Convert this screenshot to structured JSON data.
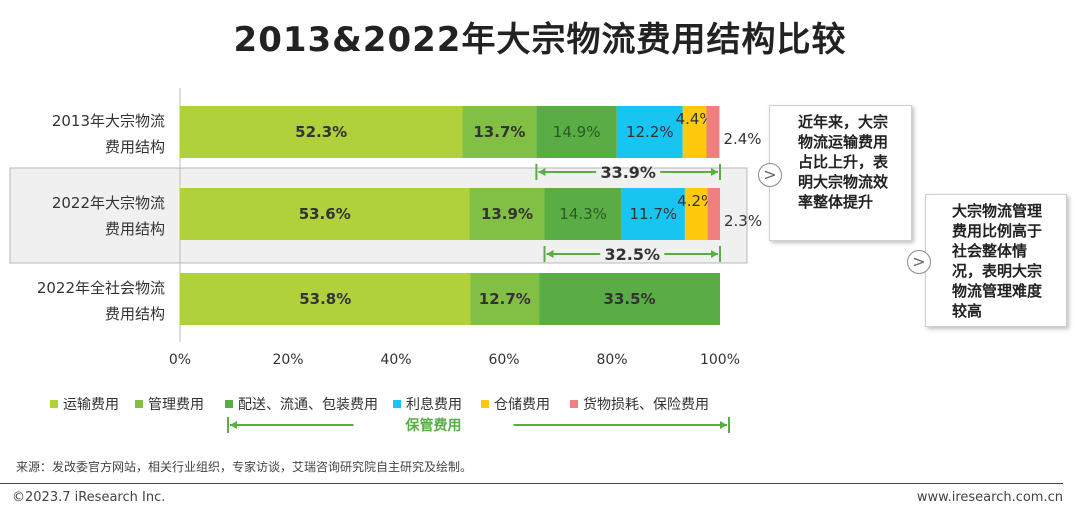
{
  "title": "2013&2022年大宗物流费用结构比较",
  "chart_data": {
    "type": "bar",
    "orientation": "horizontal",
    "stacked": true,
    "categories": [
      [
        "2013年大宗物流",
        "费用结构"
      ],
      [
        "2022年大宗物流",
        "费用结构"
      ],
      [
        "2022年全社会物流",
        "费用结构"
      ]
    ],
    "series": [
      {
        "name": "运输费用",
        "color": "#b1d13c",
        "values": [
          52.3,
          53.6,
          53.8
        ],
        "labels": [
          "52.3%",
          "53.6%",
          "53.8%"
        ]
      },
      {
        "name": "管理费用",
        "color": "#82bf45",
        "values": [
          13.7,
          13.9,
          12.7
        ],
        "labels": [
          "13.7%",
          "13.9%",
          "12.7%"
        ]
      },
      {
        "name": "配送、流通、包装费用",
        "color": "#5aad45",
        "values": [
          14.9,
          14.3,
          33.5
        ],
        "labels": [
          "14.9%",
          "14.3%",
          "33.5%"
        ]
      },
      {
        "name": "利息费用",
        "color": "#18c5f0",
        "values": [
          12.2,
          11.7,
          0
        ],
        "labels": [
          "12.2%",
          "11.7%",
          ""
        ]
      },
      {
        "name": "仓储费用",
        "color": "#ffc90e",
        "values": [
          4.4,
          4.2,
          0
        ],
        "labels": [
          "4.4%",
          "4.2%",
          ""
        ]
      },
      {
        "name": "货物损耗、保险费用",
        "color": "#f08080",
        "values": [
          2.4,
          2.3,
          0
        ],
        "labels": [
          "2.4%",
          "2.3%",
          ""
        ]
      }
    ],
    "xticks": [
      "0%",
      "20%",
      "40%",
      "60%",
      "80%",
      "100%"
    ],
    "xlim": [
      0,
      100
    ],
    "brackets": [
      {
        "row": 0,
        "from": 66.0,
        "to": 100,
        "label": "33.9%"
      },
      {
        "row": 1,
        "from": 67.5,
        "to": 100,
        "label": "32.5%"
      }
    ],
    "legend_bracket_label": "保管费用",
    "highlighted_row": 1
  },
  "notes": {
    "note1": "近年来，大宗物流运输费用占比上升，表明大宗物流效率整体提升",
    "note2": "大宗物流管理费用比例高于社会整体情况，表明大宗物流管理难度较高",
    "arrow": ">"
  },
  "legend": [
    {
      "label": "运输费用",
      "color": "#b1d13c"
    },
    {
      "label": "管理费用",
      "color": "#82bf45"
    },
    {
      "label": "配送、流通、包装费用",
      "color": "#5aad45"
    },
    {
      "label": "利息费用",
      "color": "#18c5f0"
    },
    {
      "label": "仓储费用",
      "color": "#ffc90e"
    },
    {
      "label": "货物损耗、保险费用",
      "color": "#f08080"
    }
  ],
  "source": "来源：发改委官方网站，相关行业组织，专家访谈，艾瑞咨询研究院自主研究及绘制。",
  "footer": {
    "left": "©2023.7 iResearch Inc.",
    "right": "www.iresearch.com.cn"
  }
}
